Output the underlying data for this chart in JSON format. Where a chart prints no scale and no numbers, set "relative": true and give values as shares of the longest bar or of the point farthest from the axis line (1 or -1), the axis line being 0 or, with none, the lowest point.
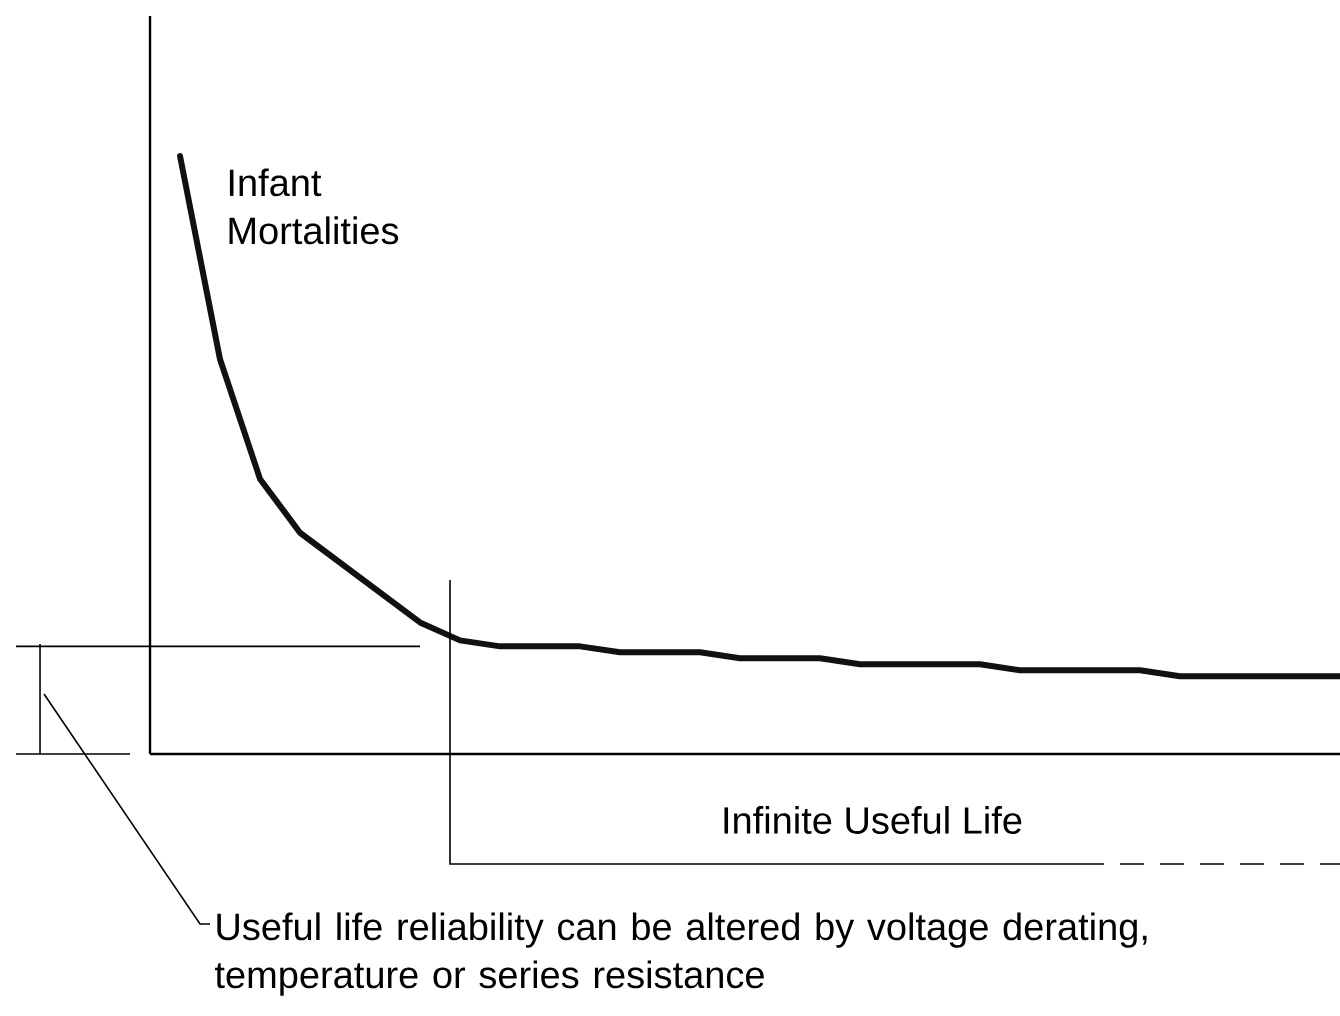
{
  "chart_data": {
    "type": "line",
    "relative": true,
    "color": "#111111",
    "categories": [
      null,
      null,
      null,
      null,
      null,
      null,
      null,
      null,
      null,
      null,
      null,
      null,
      null,
      null,
      null,
      null,
      null,
      null,
      null,
      null,
      null,
      null,
      null,
      null,
      null,
      null,
      null,
      null,
      null,
      null
    ],
    "values": [
      1.0,
      0.66,
      0.46,
      0.37,
      0.32,
      0.27,
      0.22,
      0.19,
      0.18,
      0.18,
      0.18,
      0.17,
      0.17,
      0.17,
      0.16,
      0.16,
      0.16,
      0.15,
      0.15,
      0.15,
      0.15,
      0.14,
      0.14,
      0.14,
      0.14,
      0.13,
      0.13,
      0.13,
      0.13,
      0.13
    ],
    "ref_lines": [
      {
        "axis": "y",
        "value": 0.18
      }
    ],
    "annotations": [
      "Infant Mortalities",
      "Infinite Useful Life",
      "Useful life reliability can be altered by voltage derating, temperature or series resistance"
    ]
  }
}
